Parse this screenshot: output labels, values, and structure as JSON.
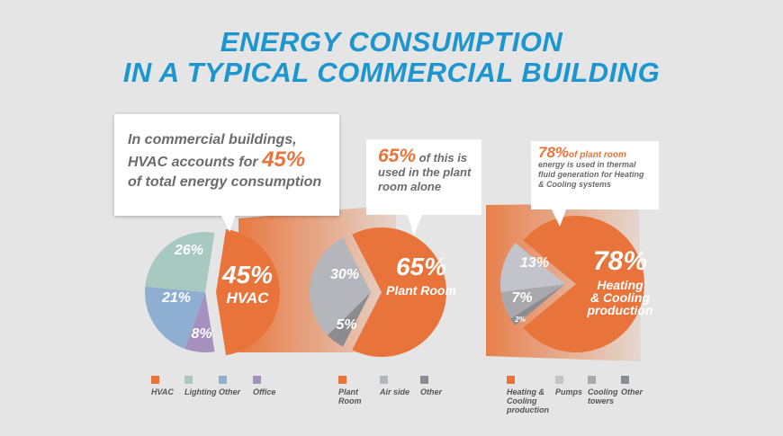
{
  "title_line1": "ENERGY CONSUMPTION",
  "title_line2": "IN A TYPICAL COMMERCIAL BUILDING",
  "colors": {
    "title": "#1d96cf",
    "orange": "#e8743b",
    "lighting": "#a7c9c0",
    "other_blue": "#8eaed2",
    "office": "#a690bd",
    "air_side": "#b5b6bb",
    "other_gray": "#8b8c8f",
    "pumps": "#c3c3cc",
    "cooling_towers": "#a8a8ad"
  },
  "callouts": {
    "c1": {
      "line1": "In commercial buildings,",
      "line2a": "HVAC accounts for",
      "pct": "45%",
      "line3": "of total energy consumption"
    },
    "c2": {
      "pct": "65%",
      "line1": "of this is",
      "line2": "used in the plant",
      "line3": "room alone"
    },
    "c3": {
      "pct": "78%",
      "line1a": "of plant room",
      "line2": "energy is used in thermal",
      "line3": "fluid generation for Heating",
      "line4": "& Cooling systems"
    }
  },
  "chart_data": [
    {
      "type": "pie",
      "title": "",
      "slices": [
        {
          "label": "HVAC",
          "value": 45,
          "text": "45%",
          "sub": "HVAC",
          "color": "#e8743b"
        },
        {
          "label": "Office",
          "value": 8,
          "text": "8%",
          "color": "#a690bd"
        },
        {
          "label": "Other",
          "value": 21,
          "text": "21%",
          "color": "#8eaed2"
        },
        {
          "label": "Lighting",
          "value": 26,
          "text": "26%",
          "color": "#a7c9c0"
        }
      ],
      "legend": [
        "HVAC",
        "Lighting",
        "Other",
        "Office"
      ]
    },
    {
      "type": "pie",
      "title": "",
      "slices": [
        {
          "label": "Plant Room",
          "value": 65,
          "text": "65%",
          "sub": "Plant Room",
          "color": "#e8743b"
        },
        {
          "label": "Other",
          "value": 5,
          "text": "5%",
          "color": "#8b8c8f"
        },
        {
          "label": "Air side",
          "value": 30,
          "text": "30%",
          "color": "#b5b6bb"
        }
      ],
      "legend": [
        "Plant Room",
        "Air side",
        "Other"
      ]
    },
    {
      "type": "pie",
      "title": "",
      "slices": [
        {
          "label": "Heating & Cooling production",
          "value": 78,
          "text": "78%",
          "sub": "Heating & Cooling production",
          "color": "#e8743b"
        },
        {
          "label": "Other",
          "value": 2,
          "text": "2%",
          "color": "#8b8c8f"
        },
        {
          "label": "Cooling towers",
          "value": 7,
          "text": "7%",
          "color": "#a8a8ad"
        },
        {
          "label": "Pumps",
          "value": 13,
          "text": "13%",
          "color": "#c3c3cc"
        }
      ],
      "legend": [
        "Heating & Cooling production",
        "Pumps",
        "Cooling towers",
        "Other"
      ]
    }
  ],
  "legend_labels": {
    "pie1": [
      "HVAC",
      "Lighting",
      "Other",
      "Office"
    ],
    "pie2": [
      "Plant",
      "Room",
      "Air side",
      "Other"
    ],
    "pie3": [
      "Heating &",
      "Cooling",
      "production",
      "Pumps",
      "Cooling",
      "towers",
      "Other"
    ]
  }
}
